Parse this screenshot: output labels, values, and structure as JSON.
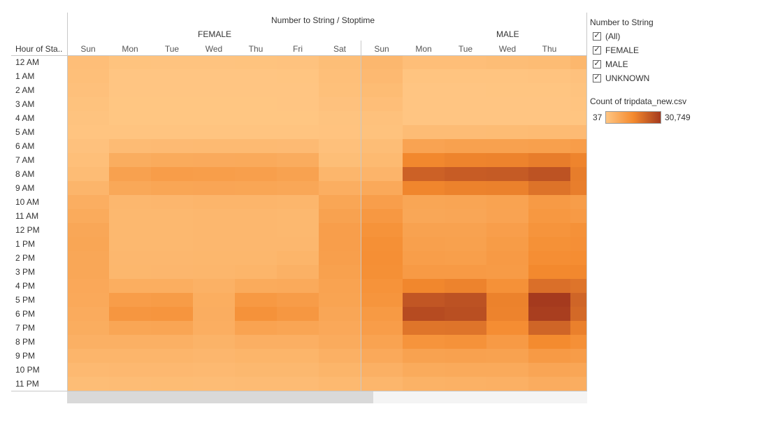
{
  "header": {
    "title": "Number to String / Stoptime"
  },
  "chart_data": {
    "type": "heatmap",
    "title": "Number to String / Stoptime",
    "row_axis_label": "Hour of Sta..",
    "groups": [
      "FEMALE",
      "MALE"
    ],
    "columns": [
      {
        "group": "FEMALE",
        "day": "Sun"
      },
      {
        "group": "FEMALE",
        "day": "Mon"
      },
      {
        "group": "FEMALE",
        "day": "Tue"
      },
      {
        "group": "FEMALE",
        "day": "Wed"
      },
      {
        "group": "FEMALE",
        "day": "Thu"
      },
      {
        "group": "FEMALE",
        "day": "Fri"
      },
      {
        "group": "FEMALE",
        "day": "Sat"
      },
      {
        "group": "MALE",
        "day": "Sun"
      },
      {
        "group": "MALE",
        "day": "Mon"
      },
      {
        "group": "MALE",
        "day": "Tue"
      },
      {
        "group": "MALE",
        "day": "Wed"
      },
      {
        "group": "MALE",
        "day": "Thu"
      },
      {
        "group": "MALE",
        "day": ""
      }
    ],
    "rows": [
      "12 AM",
      "1 AM",
      "2 AM",
      "3 AM",
      "4 AM",
      "5 AM",
      "6 AM",
      "7 AM",
      "8 AM",
      "9 AM",
      "10 AM",
      "11 AM",
      "12 PM",
      "1 PM",
      "2 PM",
      "3 PM",
      "4 PM",
      "5 PM",
      "6 PM",
      "7 PM",
      "8 PM",
      "9 PM",
      "10 PM",
      "11 PM"
    ],
    "values": [
      [
        2100,
        900,
        800,
        800,
        900,
        1000,
        2200,
        3900,
        2100,
        2100,
        2300,
        2700,
        4000
      ],
      [
        1900,
        300,
        300,
        300,
        300,
        400,
        1900,
        3300,
        500,
        500,
        600,
        700,
        1200
      ],
      [
        1500,
        200,
        200,
        200,
        200,
        250,
        1600,
        2700,
        300,
        300,
        350,
        400,
        800
      ],
      [
        1100,
        150,
        150,
        150,
        150,
        180,
        1200,
        2000,
        250,
        250,
        250,
        300,
        500
      ],
      [
        800,
        150,
        150,
        150,
        150,
        150,
        800,
        1300,
        200,
        200,
        250,
        250,
        400
      ],
      [
        600,
        500,
        500,
        500,
        500,
        500,
        700,
        1100,
        2500,
        2600,
        2700,
        2900,
        3000
      ],
      [
        1200,
        2800,
        3000,
        3100,
        3100,
        3000,
        1500,
        2300,
        8900,
        9500,
        9500,
        9800,
        10500
      ],
      [
        1800,
        6500,
        7000,
        7100,
        7200,
        6800,
        2200,
        3200,
        15800,
        16600,
        16800,
        17800,
        16500
      ],
      [
        2600,
        9500,
        10500,
        10400,
        10000,
        9300,
        4200,
        4600,
        23200,
        24200,
        24500,
        26000,
        17900
      ],
      [
        4300,
        7800,
        8300,
        8400,
        8300,
        7900,
        6200,
        7400,
        16200,
        16900,
        17200,
        19900,
        17700
      ],
      [
        6200,
        3800,
        4100,
        4300,
        4300,
        4200,
        8300,
        10200,
        8300,
        8500,
        9100,
        11200,
        10600
      ],
      [
        7000,
        3700,
        3700,
        3800,
        3800,
        3700,
        9300,
        11800,
        8000,
        8200,
        8900,
        11900,
        11200
      ],
      [
        8000,
        3700,
        3700,
        3900,
        3900,
        3700,
        10200,
        13200,
        9200,
        9200,
        10200,
        12900,
        13500
      ],
      [
        8300,
        3600,
        3600,
        3800,
        3800,
        3900,
        10200,
        13900,
        9800,
        9600,
        10800,
        13700,
        14000
      ],
      [
        7900,
        3800,
        3800,
        4000,
        4000,
        4500,
        10000,
        14100,
        10300,
        10100,
        11200,
        14300,
        14600
      ],
      [
        7900,
        4000,
        4100,
        4200,
        4500,
        5500,
        9600,
        13900,
        11300,
        11200,
        11000,
        15500,
        15800
      ],
      [
        7600,
        6300,
        6300,
        5500,
        7000,
        7200,
        9000,
        13200,
        15900,
        16800,
        13500,
        20500,
        19700
      ],
      [
        7400,
        10500,
        10800,
        6300,
        11600,
        10700,
        8800,
        12700,
        25300,
        26200,
        17000,
        30749,
        22500
      ],
      [
        6900,
        12200,
        12500,
        6400,
        13300,
        12000,
        8100,
        11400,
        27500,
        26800,
        16700,
        30000,
        21800
      ],
      [
        6500,
        8300,
        8600,
        6200,
        9100,
        8600,
        7700,
        10500,
        19500,
        19600,
        14500,
        22500,
        17300
      ],
      [
        5600,
        5600,
        5700,
        5000,
        5900,
        5800,
        6900,
        9000,
        12800,
        13300,
        11300,
        15200,
        13800
      ],
      [
        4400,
        4300,
        4400,
        4100,
        4500,
        4500,
        5600,
        7400,
        9200,
        9500,
        9300,
        11200,
        10700
      ],
      [
        3300,
        3500,
        3500,
        3300,
        3600,
        3600,
        4500,
        5700,
        7000,
        7200,
        7200,
        8400,
        8200
      ],
      [
        2400,
        2600,
        2700,
        2500,
        2800,
        2800,
        3400,
        4200,
        5200,
        5400,
        5600,
        6600,
        6400
      ]
    ],
    "color_scale": {
      "min": 37,
      "max": 30749,
      "min_color": "#ffc683",
      "max_color": "#a53a1e"
    },
    "legend": {
      "title": "Count of tripdata_new.csv",
      "min_label": "37",
      "max_label": "30,749"
    }
  },
  "filter": {
    "title": "Number to String",
    "items": [
      {
        "label": "(All)",
        "checked": true
      },
      {
        "label": "FEMALE",
        "checked": true
      },
      {
        "label": "MALE",
        "checked": true
      },
      {
        "label": "UNKNOWN",
        "checked": true
      }
    ]
  },
  "colors": {
    "grid_line": "#c8c8c8",
    "scrollbar_track": "#f4f4f4",
    "scrollbar_thumb": "#d9d9d9"
  }
}
